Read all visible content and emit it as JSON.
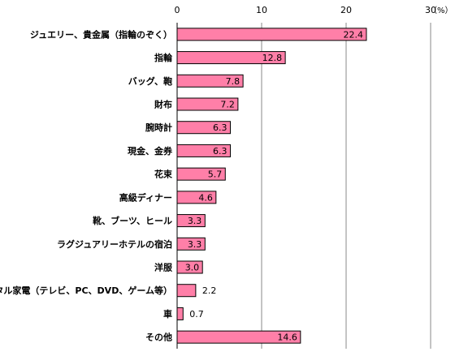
{
  "chart_data": {
    "type": "bar",
    "orientation": "horizontal",
    "title": "",
    "xlabel": "",
    "ylabel": "",
    "unit": "（%）",
    "xlim": [
      0,
      30
    ],
    "ticks": [
      0,
      10,
      20,
      30
    ],
    "grid": true,
    "legend": "none",
    "bar_color": "#ff7fa8",
    "categories": [
      "ジュエリー、貴金属（指輪のぞく）",
      "指輪",
      "バッグ、鞄",
      "財布",
      "腕時計",
      "現金、金券",
      "花束",
      "高級ディナー",
      "靴、ブーツ、ヒール",
      "ラグジュアリーホテルの宿泊",
      "洋服",
      "デジタル家電（テレビ、PC、DVD、ゲーム等）",
      "車",
      "その他"
    ],
    "values": [
      22.4,
      12.8,
      7.8,
      7.2,
      6.3,
      6.3,
      5.7,
      4.6,
      3.3,
      3.3,
      3.0,
      2.2,
      0.7,
      14.6
    ],
    "value_labels": [
      "22.4",
      "12.8",
      "7.8",
      "7.2",
      "6.3",
      "6.3",
      "5.7",
      "4.6",
      "3.3",
      "3.3",
      "3.0",
      "2.2",
      "0.7",
      "14.6"
    ]
  }
}
